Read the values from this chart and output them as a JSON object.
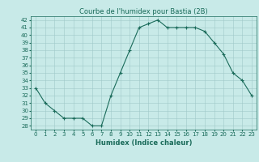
{
  "x": [
    0,
    1,
    2,
    3,
    4,
    5,
    6,
    7,
    8,
    9,
    10,
    11,
    12,
    13,
    14,
    15,
    16,
    17,
    18,
    19,
    20,
    21,
    22,
    23
  ],
  "y": [
    33,
    31,
    30,
    29,
    29,
    29,
    28,
    28,
    32,
    35,
    38,
    41,
    41.5,
    42,
    41,
    41,
    41,
    41,
    40.5,
    39,
    37.5,
    35,
    34,
    32
  ],
  "line_color": "#1a6b5a",
  "marker": "+",
  "marker_size": 3,
  "marker_linewidth": 0.8,
  "bg_color": "#c8eae8",
  "grid_color": "#a0c8c8",
  "title": "Courbe de l'humidex pour Bastia (2B)",
  "xlabel": "Humidex (Indice chaleur)",
  "ylim": [
    27.5,
    42.5
  ],
  "xlim": [
    -0.5,
    23.5
  ],
  "yticks": [
    28,
    29,
    30,
    31,
    32,
    33,
    34,
    35,
    36,
    37,
    38,
    39,
    40,
    41,
    42
  ],
  "xticks": [
    0,
    1,
    2,
    3,
    4,
    5,
    6,
    7,
    8,
    9,
    10,
    11,
    12,
    13,
    14,
    15,
    16,
    17,
    18,
    19,
    20,
    21,
    22,
    23
  ],
  "xtick_labels": [
    "0",
    "1",
    "2",
    "3",
    "4",
    "5",
    "6",
    "7",
    "8",
    "9",
    "10",
    "11",
    "12",
    "13",
    "14",
    "15",
    "16",
    "17",
    "18",
    "19",
    "20",
    "21",
    "22",
    "23"
  ],
  "tick_color": "#1a6b5a",
  "label_fontsize": 6,
  "tick_fontsize": 5,
  "title_fontsize": 6,
  "line_width": 0.8
}
